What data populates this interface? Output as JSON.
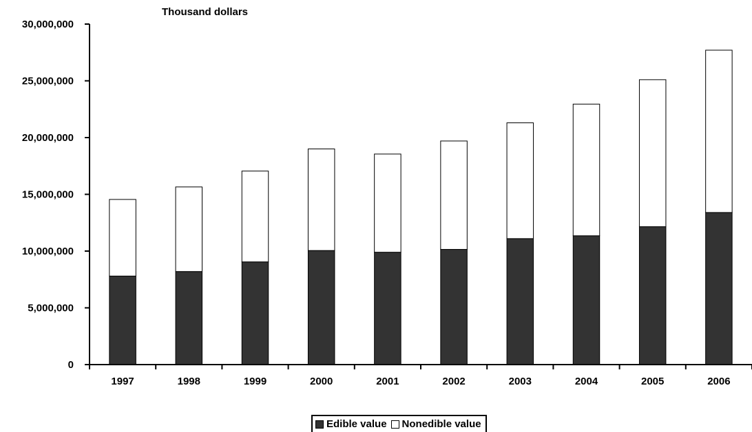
{
  "chart_data": {
    "type": "bar",
    "stacked": true,
    "unit_label": "Thousand dollars",
    "categories": [
      "1997",
      "1998",
      "1999",
      "2000",
      "2001",
      "2002",
      "2003",
      "2004",
      "2005",
      "2006"
    ],
    "series": [
      {
        "name": "Edible value",
        "color": "#333333",
        "values": [
          7800000,
          8200000,
          9050000,
          10050000,
          9900000,
          10150000,
          11100000,
          11350000,
          12150000,
          13400000
        ]
      },
      {
        "name": "Nonedible value",
        "color": "#ffffff",
        "values": [
          6750000,
          7450000,
          8000000,
          8950000,
          8650000,
          9550000,
          10200000,
          11600000,
          12950000,
          14300000
        ]
      }
    ],
    "ylim": [
      0,
      30000000
    ],
    "yticks": [
      0,
      5000000,
      10000000,
      15000000,
      20000000,
      25000000,
      30000000
    ],
    "ytick_labels": [
      "0",
      "5,000,000",
      "10,000,000",
      "15,000,000",
      "20,000,000",
      "25,000,000",
      "30,000,000"
    ],
    "legend_position": "bottom-center",
    "grid": false
  }
}
